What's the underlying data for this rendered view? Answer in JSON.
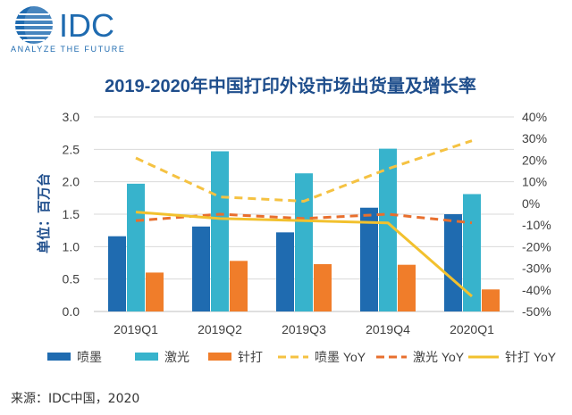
{
  "logo": {
    "brand": "IDC",
    "tagline": "ANALYZE THE FUTURE",
    "color": "#1f6bb0"
  },
  "source_text": "来源：IDC中国，2020",
  "chart_data": {
    "type": "bar",
    "title": "2019-2020年中国打印外设市场出货量及增长率",
    "ylabel": "单位：百万台",
    "categories": [
      "2019Q1",
      "2019Q2",
      "2019Q3",
      "2019Q4",
      "2020Q1"
    ],
    "ylim": [
      0,
      3.0
    ],
    "yticks": [
      "0.0",
      "0.5",
      "1.0",
      "1.5",
      "2.0",
      "2.5",
      "3.0"
    ],
    "y2lim": [
      -50,
      40
    ],
    "y2ticks": [
      "-50%",
      "-40%",
      "-30%",
      "-20%",
      "-10%",
      "0%",
      "10%",
      "20%",
      "30%",
      "40%"
    ],
    "grid": true,
    "legend_position": "bottom",
    "series": [
      {
        "name": "喷墨",
        "kind": "bar",
        "axis": "left",
        "color": "#1f6bb0",
        "values": [
          1.16,
          1.31,
          1.22,
          1.6,
          1.5
        ]
      },
      {
        "name": "激光",
        "kind": "bar",
        "axis": "left",
        "color": "#37b3cc",
        "values": [
          1.97,
          2.47,
          2.13,
          2.51,
          1.81
        ]
      },
      {
        "name": "针打",
        "kind": "bar",
        "axis": "left",
        "color": "#f07d2a",
        "values": [
          0.6,
          0.78,
          0.73,
          0.72,
          0.34
        ]
      },
      {
        "name": "喷墨 YoY",
        "kind": "line",
        "dash": "dashed",
        "axis": "right",
        "color": "#f5c242",
        "values": [
          21,
          3,
          1,
          16,
          29
        ]
      },
      {
        "name": "激光 YoY",
        "kind": "line",
        "dash": "dashed",
        "axis": "right",
        "color": "#e86f2e",
        "values": [
          -8,
          -5,
          -7,
          -5,
          -9
        ]
      },
      {
        "name": "针打 YoY",
        "kind": "line",
        "dash": "solid",
        "axis": "right",
        "color": "#f2c12e",
        "values": [
          -4,
          -7,
          -8,
          -9,
          -43
        ]
      }
    ]
  }
}
